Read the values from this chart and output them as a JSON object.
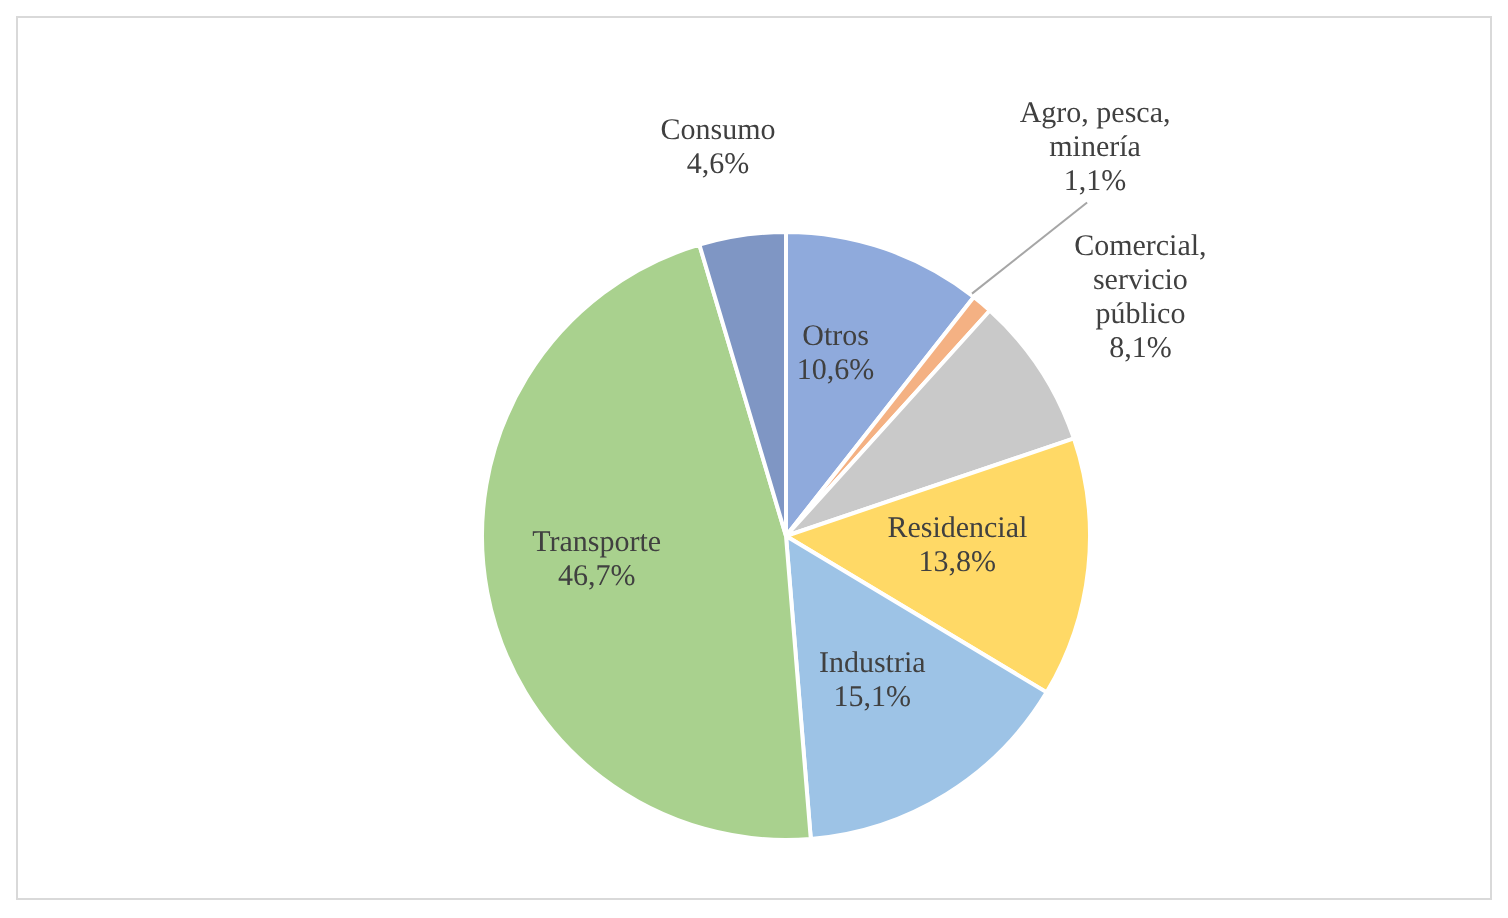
{
  "chart_data": {
    "type": "pie",
    "categories": [
      "Otros",
      "Agro, pesca, minería",
      "Comercial, servicio público",
      "Residencial",
      "Industria",
      "Transporte",
      "Consumo"
    ],
    "values": [
      10.6,
      1.1,
      8.1,
      13.8,
      15.1,
      46.7,
      4.6
    ],
    "value_labels": [
      "10,6%",
      "1,1%",
      "8,1%",
      "13,8%",
      "15,1%",
      "46,7%",
      "4,6%"
    ],
    "colors": [
      "#8faadc",
      "#f4b183",
      "#c9c9c9",
      "#ffd966",
      "#9dc3e6",
      "#a9d18e",
      "#7f96c4"
    ],
    "legend": false
  }
}
